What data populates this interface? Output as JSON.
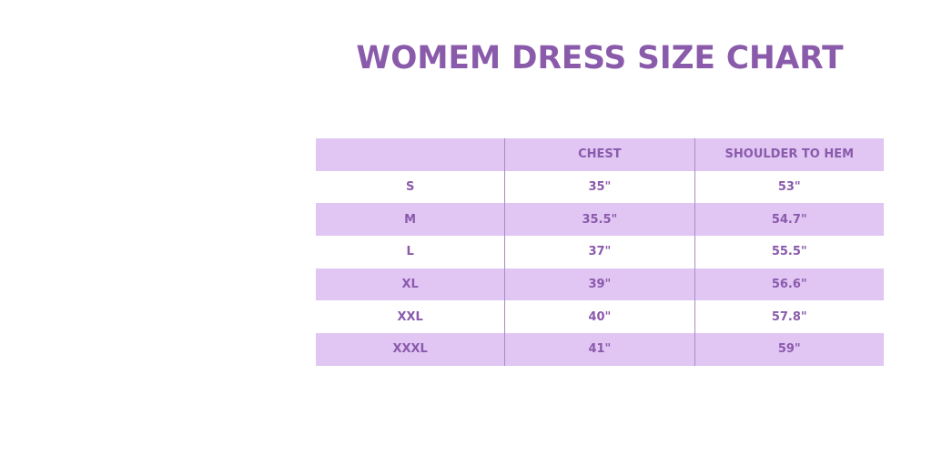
{
  "title": "WOMEM DRESS SIZE CHART",
  "colors": {
    "accent": "#8a5aab",
    "band": "#e1c6f4"
  },
  "table": {
    "headers": [
      "",
      "CHEST",
      "SHOULDER TO HEM"
    ],
    "rows": [
      [
        "S",
        "35\"",
        "53\""
      ],
      [
        "M",
        "35.5\"",
        "54.7\""
      ],
      [
        "L",
        "37\"",
        "55.5\""
      ],
      [
        "XL",
        "39\"",
        "56.6\""
      ],
      [
        "XXL",
        "40\"",
        "57.8\""
      ],
      [
        "XXXL",
        "41\"",
        "59\""
      ]
    ]
  }
}
